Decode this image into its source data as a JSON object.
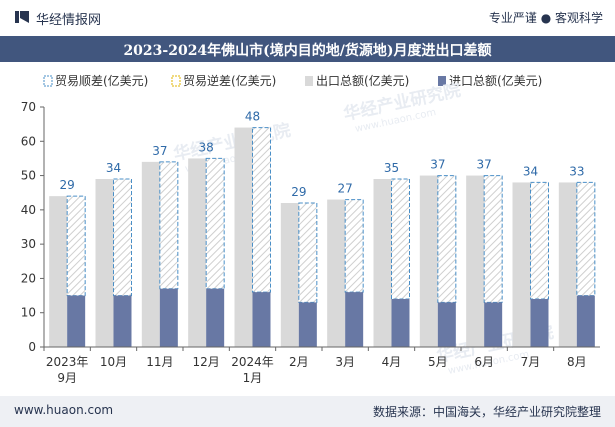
{
  "header": {
    "brand": "华经情报网",
    "tagline": "专业严谨 ● 客观科学",
    "logo_icon": "huajing-logo-icon"
  },
  "title": "2023-2024年佛山市(境内目的地/货源地)月度进出口差额",
  "footer": {
    "site": "www.huaon.com",
    "source": "数据来源：中国海关，华经产业研究院整理"
  },
  "watermark": "华经产业研究院",
  "watermark_url": "www.huaon.com",
  "colors": {
    "title_bg": "#41567e",
    "export": "#d9d9d9",
    "import": "#6878a4",
    "surplus_outline": "#4a8fc7"
  },
  "chart_data": {
    "type": "bar",
    "categories": [
      "2023年\n9月",
      "10月",
      "11月",
      "12月",
      "2024年\n1月",
      "2月",
      "3月",
      "4月",
      "5月",
      "6月",
      "7月",
      "8月"
    ],
    "series": [
      {
        "name": "贸易顺差(亿美元)",
        "values": [
          29,
          34,
          37,
          38,
          48,
          29,
          27,
          35,
          37,
          37,
          34,
          33
        ]
      },
      {
        "name": "贸易逆差(亿美元)",
        "values": [
          0,
          0,
          0,
          0,
          0,
          0,
          0,
          0,
          0,
          0,
          0,
          0
        ]
      },
      {
        "name": "出口总额(亿美元)",
        "values": [
          44,
          49,
          54,
          55,
          64,
          42,
          43,
          49,
          50,
          50,
          48,
          48
        ]
      },
      {
        "name": "进口总额(亿美元)",
        "values": [
          15,
          15,
          17,
          17,
          16,
          13,
          16,
          14,
          13,
          13,
          14,
          15
        ]
      }
    ],
    "data_labels": [
      "29",
      "34",
      "37",
      "38",
      "48",
      "29",
      "27",
      "35",
      "37",
      "37",
      "34",
      "33"
    ],
    "yticks": [
      "0",
      "10",
      "20",
      "30",
      "40",
      "50",
      "60",
      "70"
    ],
    "ylim": [
      0,
      70
    ],
    "legend_position": "top",
    "grid": false
  }
}
